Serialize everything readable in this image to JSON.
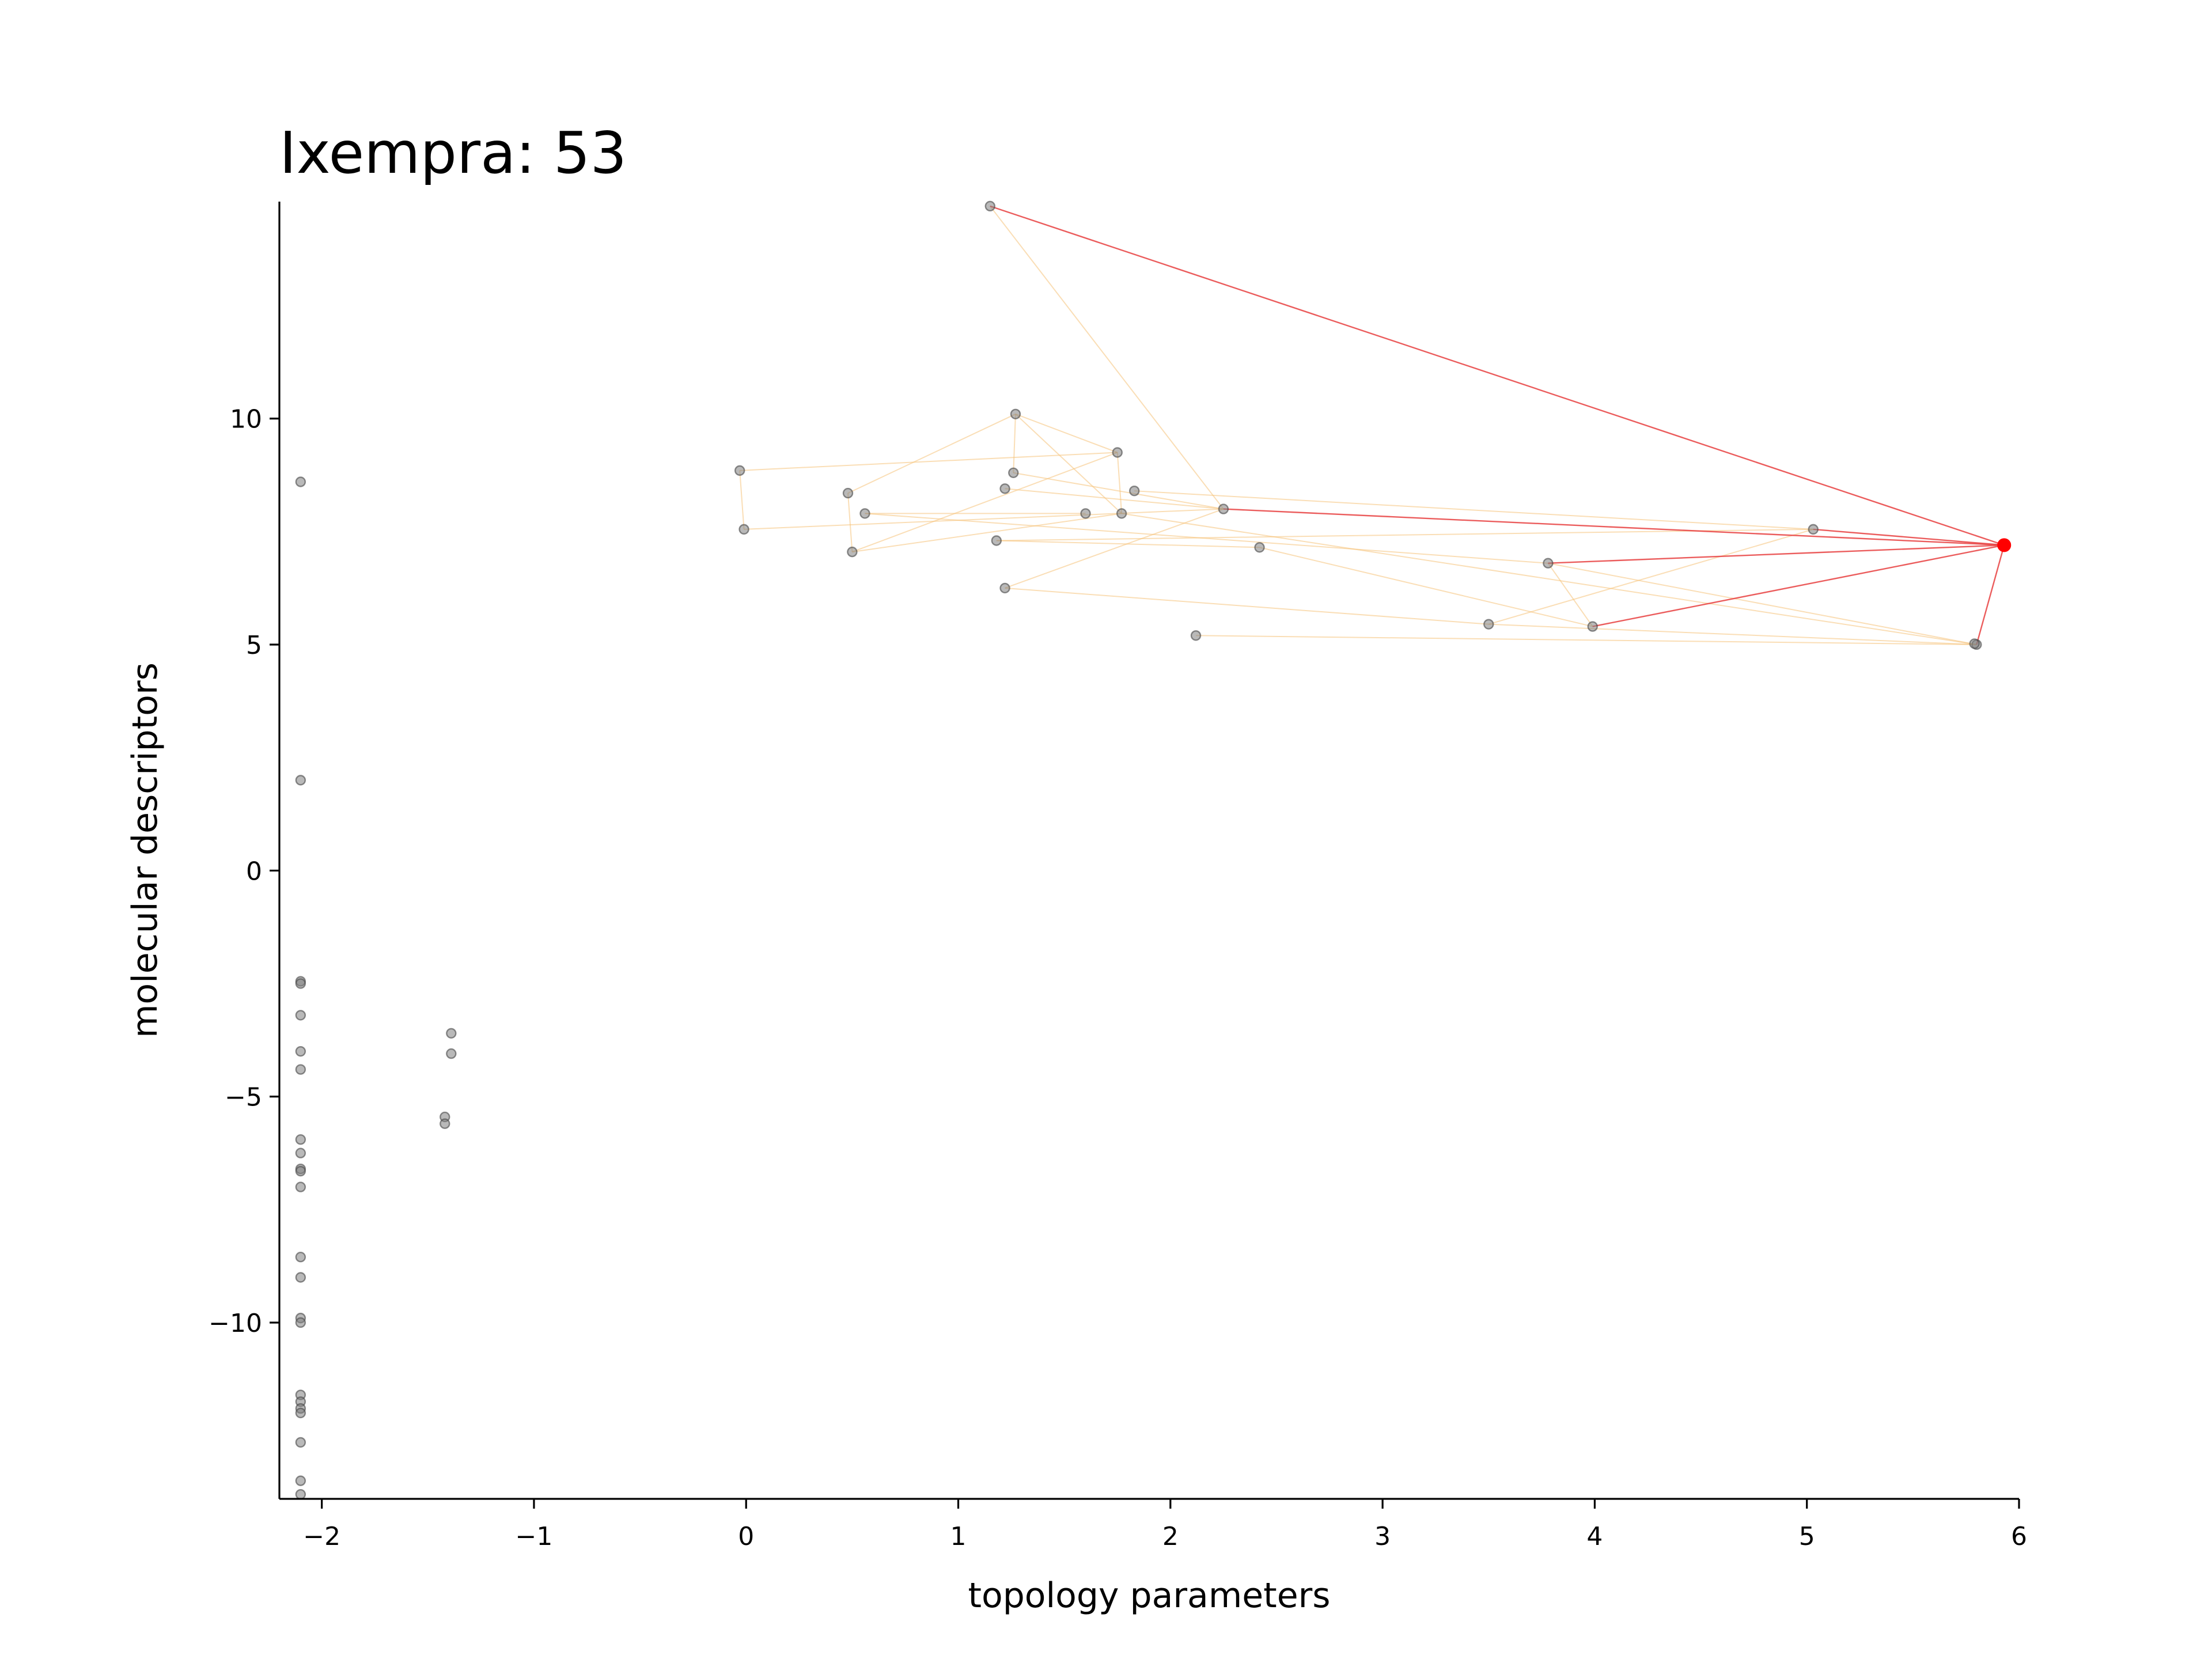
{
  "chart_data": {
    "type": "scatter",
    "title": "Ixempra: 53",
    "xlabel": "topology parameters",
    "ylabel": "molecular descriptors",
    "xlim": [
      -2.2,
      6.0
    ],
    "ylim": [
      -13.9,
      14.8
    ],
    "xticks": [
      -2,
      -1,
      0,
      1,
      2,
      3,
      4,
      5,
      6
    ],
    "yticks": [
      -10,
      -5,
      0,
      5,
      10
    ],
    "xtick_labels": [
      "−2",
      "−1",
      "0",
      "1",
      "2",
      "3",
      "4",
      "5",
      "6"
    ],
    "ytick_labels": [
      "−10",
      "−5",
      "0",
      "5",
      "10"
    ],
    "grid": false,
    "colors": {
      "points": "#808080",
      "point_edge": "#444444",
      "highlight": "#ff0000",
      "highlight_edges": "#e8403f",
      "neighbor_edges": "#f5c27a"
    },
    "highlight_point": {
      "x": 5.93,
      "y": 7.2
    },
    "points": [
      {
        "x": -2.1,
        "y": 8.6
      },
      {
        "x": -2.1,
        "y": 2.0
      },
      {
        "x": -2.1,
        "y": -2.45
      },
      {
        "x": -2.1,
        "y": -2.5
      },
      {
        "x": -2.1,
        "y": -3.2
      },
      {
        "x": -2.1,
        "y": -4.0
      },
      {
        "x": -2.1,
        "y": -4.4
      },
      {
        "x": -2.1,
        "y": -5.95
      },
      {
        "x": -2.1,
        "y": -6.25
      },
      {
        "x": -2.1,
        "y": -6.6
      },
      {
        "x": -2.1,
        "y": -6.65
      },
      {
        "x": -2.1,
        "y": -7.0
      },
      {
        "x": -2.1,
        "y": -8.55
      },
      {
        "x": -2.1,
        "y": -9.0
      },
      {
        "x": -2.1,
        "y": -9.9
      },
      {
        "x": -2.1,
        "y": -10.0
      },
      {
        "x": -2.1,
        "y": -11.6
      },
      {
        "x": -2.1,
        "y": -11.75
      },
      {
        "x": -2.1,
        "y": -11.9
      },
      {
        "x": -2.1,
        "y": -12.0
      },
      {
        "x": -2.1,
        "y": -12.65
      },
      {
        "x": -2.1,
        "y": -13.5
      },
      {
        "x": -2.1,
        "y": -13.8
      },
      {
        "x": -1.39,
        "y": -3.6
      },
      {
        "x": -1.39,
        "y": -4.05
      },
      {
        "x": -1.42,
        "y": -5.45
      },
      {
        "x": -1.42,
        "y": -5.6
      },
      {
        "x": 1.15,
        "y": 14.7
      },
      {
        "x": 1.27,
        "y": 10.1
      },
      {
        "x": 1.75,
        "y": 9.25
      },
      {
        "x": -0.03,
        "y": 8.85
      },
      {
        "x": 1.26,
        "y": 8.8
      },
      {
        "x": 0.48,
        "y": 8.35
      },
      {
        "x": 1.22,
        "y": 8.45
      },
      {
        "x": 1.83,
        "y": 8.4
      },
      {
        "x": 0.56,
        "y": 7.9
      },
      {
        "x": 1.6,
        "y": 7.9
      },
      {
        "x": 1.77,
        "y": 7.9
      },
      {
        "x": 2.25,
        "y": 8.0
      },
      {
        "x": -0.01,
        "y": 7.55
      },
      {
        "x": 1.18,
        "y": 7.3
      },
      {
        "x": 0.5,
        "y": 7.05
      },
      {
        "x": 2.42,
        "y": 7.15
      },
      {
        "x": 5.03,
        "y": 7.55
      },
      {
        "x": 3.78,
        "y": 6.8
      },
      {
        "x": 1.22,
        "y": 6.25
      },
      {
        "x": 3.5,
        "y": 5.45
      },
      {
        "x": 3.99,
        "y": 5.4
      },
      {
        "x": 2.12,
        "y": 5.2
      },
      {
        "x": 5.8,
        "y": 5.0
      },
      {
        "x": 5.79,
        "y": 5.02
      }
    ],
    "highlight_edges": [
      {
        "x1": 5.93,
        "y1": 7.2,
        "x2": 1.15,
        "y2": 14.7
      },
      {
        "x1": 5.93,
        "y1": 7.2,
        "x2": 2.25,
        "y2": 8.0
      },
      {
        "x1": 5.93,
        "y1": 7.2,
        "x2": 5.03,
        "y2": 7.55
      },
      {
        "x1": 5.93,
        "y1": 7.2,
        "x2": 3.78,
        "y2": 6.8
      },
      {
        "x1": 5.93,
        "y1": 7.2,
        "x2": 3.99,
        "y2": 5.4
      },
      {
        "x1": 5.93,
        "y1": 7.2,
        "x2": 5.8,
        "y2": 5.0
      }
    ],
    "neighbor_edges": [
      {
        "x1": 1.15,
        "y1": 14.7,
        "x2": 2.25,
        "y2": 8.0
      },
      {
        "x1": 1.27,
        "y1": 10.1,
        "x2": 1.75,
        "y2": 9.25
      },
      {
        "x1": 1.27,
        "y1": 10.1,
        "x2": 0.48,
        "y2": 8.35
      },
      {
        "x1": 1.27,
        "y1": 10.1,
        "x2": 1.26,
        "y2": 8.8
      },
      {
        "x1": 1.27,
        "y1": 10.1,
        "x2": 1.77,
        "y2": 7.9
      },
      {
        "x1": 1.75,
        "y1": 9.25,
        "x2": -0.03,
        "y2": 8.85
      },
      {
        "x1": 1.75,
        "y1": 9.25,
        "x2": 1.77,
        "y2": 7.9
      },
      {
        "x1": 1.75,
        "y1": 9.25,
        "x2": 0.5,
        "y2": 7.05
      },
      {
        "x1": -0.03,
        "y1": 8.85,
        "x2": -0.01,
        "y2": 7.55
      },
      {
        "x1": 1.26,
        "y1": 8.8,
        "x2": 2.25,
        "y2": 8.0
      },
      {
        "x1": 0.48,
        "y1": 8.35,
        "x2": 0.5,
        "y2": 7.05
      },
      {
        "x1": 0.56,
        "y1": 7.9,
        "x2": 1.6,
        "y2": 7.9
      },
      {
        "x1": 0.56,
        "y1": 7.9,
        "x2": 3.78,
        "y2": 6.8
      },
      {
        "x1": 1.22,
        "y1": 8.45,
        "x2": 2.25,
        "y2": 8.0
      },
      {
        "x1": 1.83,
        "y1": 8.4,
        "x2": 5.03,
        "y2": 7.55
      },
      {
        "x1": -0.01,
        "y1": 7.55,
        "x2": 2.25,
        "y2": 8.0
      },
      {
        "x1": 1.18,
        "y1": 7.3,
        "x2": 5.03,
        "y2": 7.55
      },
      {
        "x1": 1.18,
        "y1": 7.3,
        "x2": 2.42,
        "y2": 7.15
      },
      {
        "x1": 0.5,
        "y1": 7.05,
        "x2": 1.77,
        "y2": 7.9
      },
      {
        "x1": 2.42,
        "y1": 7.15,
        "x2": 3.99,
        "y2": 5.4
      },
      {
        "x1": 1.22,
        "y1": 6.25,
        "x2": 2.25,
        "y2": 8.0
      },
      {
        "x1": 1.22,
        "y1": 6.25,
        "x2": 3.5,
        "y2": 5.45
      },
      {
        "x1": 2.12,
        "y1": 5.2,
        "x2": 5.8,
        "y2": 5.0
      },
      {
        "x1": 3.5,
        "y1": 5.45,
        "x2": 5.8,
        "y2": 5.0
      },
      {
        "x1": 3.5,
        "y1": 5.45,
        "x2": 5.03,
        "y2": 7.55
      },
      {
        "x1": 3.78,
        "y1": 6.8,
        "x2": 5.8,
        "y2": 5.0
      },
      {
        "x1": 3.99,
        "y1": 5.4,
        "x2": 3.78,
        "y2": 6.8
      },
      {
        "x1": 1.77,
        "y1": 7.9,
        "x2": 5.8,
        "y2": 5.0
      }
    ]
  }
}
